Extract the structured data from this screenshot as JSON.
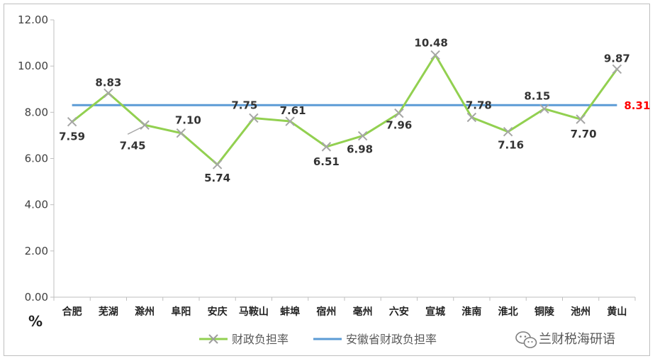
{
  "chart_data": {
    "type": "line",
    "categories": [
      "合肥",
      "芜湖",
      "滁州",
      "阜阳",
      "安庆",
      "马鞍山",
      "蚌埠",
      "宿州",
      "亳州",
      "六安",
      "宣城",
      "淮南",
      "淮北",
      "铜陵",
      "池州",
      "黄山"
    ],
    "series": [
      {
        "name": "财政负担率",
        "values": [
          7.59,
          8.83,
          7.45,
          7.1,
          5.74,
          7.75,
          7.61,
          6.51,
          6.98,
          7.96,
          10.48,
          7.78,
          7.16,
          8.15,
          7.7,
          9.87
        ],
        "color": "#92d050",
        "marker": "x-marker"
      },
      {
        "name": "安徽省财政负担率",
        "values": [
          8.31,
          8.31,
          8.31,
          8.31,
          8.31,
          8.31,
          8.31,
          8.31,
          8.31,
          8.31,
          8.31,
          8.31,
          8.31,
          8.31,
          8.31,
          8.31
        ],
        "color": "#5b9bd5"
      }
    ],
    "data_labels": [
      "7.59",
      "8.83",
      "7.45",
      "7.10",
      "5.74",
      "7.75",
      "7.61",
      "6.51",
      "6.98",
      "7.96",
      "10.48",
      "7.78",
      "7.16",
      "8.15",
      "7.70",
      "9.87"
    ],
    "avg_label": "8.31",
    "avg_label_color": "#ff0000",
    "y_ticks": [
      "0.00",
      "2.00",
      "4.00",
      "6.00",
      "8.00",
      "10.00",
      "12.00"
    ],
    "ylim": [
      0,
      12
    ],
    "ylabel": "%",
    "grid": false,
    "legend_position": "bottom"
  },
  "watermark": {
    "text": "兰财税海研语",
    "icon": "wechat-icon"
  }
}
